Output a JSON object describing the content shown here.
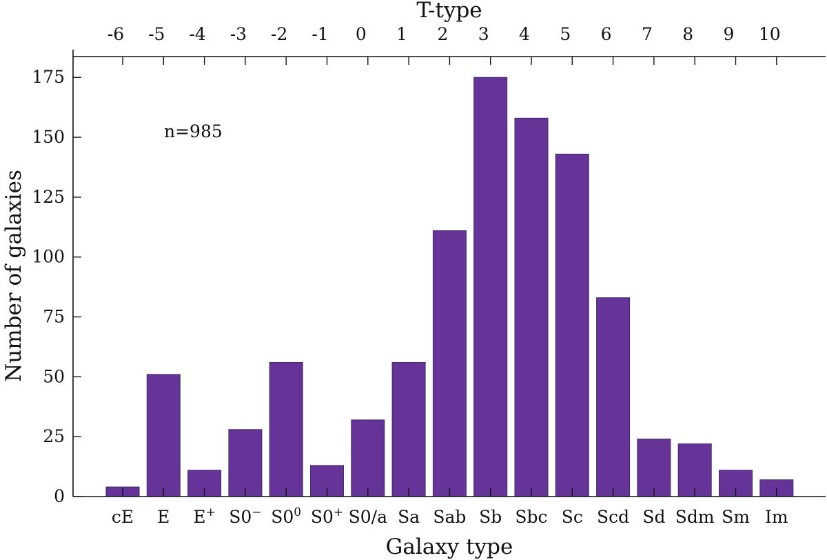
{
  "chart_data": {
    "type": "bar",
    "title": "",
    "xlabel": "Galaxy type",
    "ylabel": "Number of galaxies",
    "top_xlabel": "T-type",
    "annotation": "n=985",
    "bar_color": "#663399",
    "ylim": [
      0,
      185
    ],
    "yticks": [
      0,
      25,
      50,
      75,
      100,
      125,
      150,
      175
    ],
    "categories": [
      {
        "base": "cE",
        "sup": ""
      },
      {
        "base": "E",
        "sup": ""
      },
      {
        "base": "E",
        "sup": "+"
      },
      {
        "base": "S0",
        "sup": "−"
      },
      {
        "base": "S0",
        "sup": "0"
      },
      {
        "base": "S0",
        "sup": "+"
      },
      {
        "base": "S0/a",
        "sup": ""
      },
      {
        "base": "Sa",
        "sup": ""
      },
      {
        "base": "Sab",
        "sup": ""
      },
      {
        "base": "Sb",
        "sup": ""
      },
      {
        "base": "Sbc",
        "sup": ""
      },
      {
        "base": "Sc",
        "sup": ""
      },
      {
        "base": "Scd",
        "sup": ""
      },
      {
        "base": "Sd",
        "sup": ""
      },
      {
        "base": "Sdm",
        "sup": ""
      },
      {
        "base": "Sm",
        "sup": ""
      },
      {
        "base": "Im",
        "sup": ""
      }
    ],
    "values": [
      4,
      51,
      11,
      28,
      56,
      13,
      32,
      56,
      111,
      175,
      158,
      143,
      83,
      24,
      22,
      11,
      7
    ],
    "top_ticks": [
      "-6",
      "-5",
      "-4",
      "-3",
      "-2",
      "-1",
      "0",
      "1",
      "2",
      "3",
      "4",
      "5",
      "6",
      "7",
      "8",
      "9",
      "10"
    ]
  }
}
